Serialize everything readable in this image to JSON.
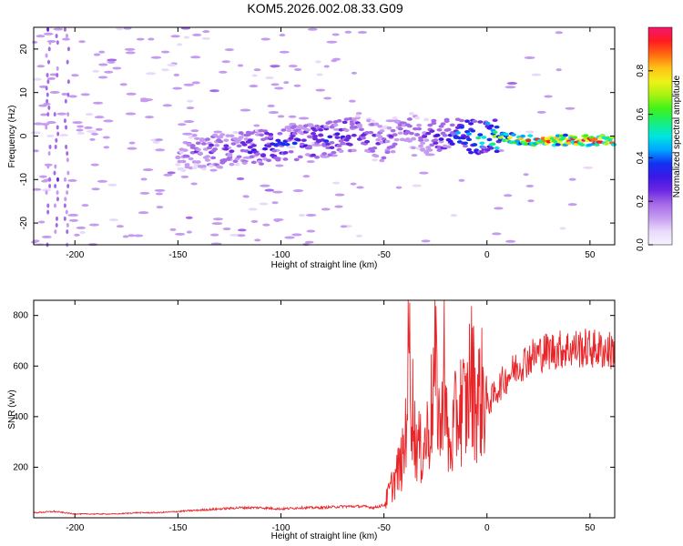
{
  "title": "KOM5.2026.002.08.33.G09",
  "colors": {
    "snr_line": "#e8262a",
    "axis": "#000000"
  },
  "colorbar_gradient": [
    "#f7f2ff",
    "#e9d9fb",
    "#c59bf0",
    "#a56ae8",
    "#6c27e2",
    "#3b18e6",
    "#1033f0",
    "#00a8ff",
    "#00e6e0",
    "#18ee7a",
    "#3df21a",
    "#a6f212",
    "#eef218",
    "#ffc216",
    "#ff6a10",
    "#ff1a22",
    "#f0186e"
  ],
  "chart_data": [
    {
      "type": "heatmap",
      "id": "spectrogram",
      "title": "",
      "xlabel": "Height of straight line (km)",
      "ylabel": "Frequency (Hz)",
      "xlim": [
        -220,
        62
      ],
      "ylim": [
        -25,
        25
      ],
      "xticks": [
        -200,
        -150,
        -100,
        -50,
        0,
        50
      ],
      "xtick_labels": [
        "-200",
        "-150",
        "-100",
        "-50",
        "0",
        "50"
      ],
      "yticks": [
        -20,
        -10,
        0,
        10,
        20
      ],
      "ytick_labels": [
        "-20",
        "-10",
        "0",
        "10",
        "20"
      ],
      "colorbar": {
        "label": "Normalized spectral amplitude",
        "range": [
          0,
          1
        ],
        "ticks": [
          0.0,
          0.2,
          0.4,
          0.6,
          0.8
        ],
        "tick_labels": [
          "0.0",
          "0.2",
          "0.4",
          "0.6",
          "0.8"
        ]
      },
      "ridge": {
        "description_points_x": [
          -150,
          -120,
          -100,
          -80,
          -60,
          -50,
          -40,
          -30,
          -20,
          -10,
          0,
          20,
          40,
          62
        ],
        "center_freq": [
          -4,
          -3,
          -2,
          -1,
          1,
          -2,
          2,
          0,
          0,
          0,
          0,
          -1,
          -1,
          -1
        ],
        "amplitude": [
          0.15,
          0.25,
          0.3,
          0.3,
          0.25,
          0.2,
          0.2,
          0.2,
          0.3,
          0.4,
          0.5,
          0.8,
          0.9,
          0.9
        ]
      }
    },
    {
      "type": "line",
      "id": "snr",
      "title": "",
      "xlabel": "Height of straight line (km)",
      "ylabel": "SNR (v/v)",
      "xlim": [
        -220,
        62
      ],
      "ylim": [
        0,
        860
      ],
      "xticks": [
        -200,
        -150,
        -100,
        -50,
        0,
        50
      ],
      "xtick_labels": [
        "-200",
        "-150",
        "-100",
        "-50",
        "0",
        "50"
      ],
      "yticks": [
        200,
        400,
        600,
        800
      ],
      "ytick_labels": [
        "200",
        "400",
        "600",
        "800"
      ],
      "series": [
        {
          "name": "SNR",
          "x": [
            -220,
            -210,
            -200,
            -190,
            -180,
            -170,
            -160,
            -150,
            -140,
            -130,
            -120,
            -110,
            -100,
            -90,
            -80,
            -70,
            -60,
            -55,
            -50,
            -45,
            -40,
            -38,
            -35,
            -32,
            -30,
            -28,
            -25,
            -22,
            -21,
            -20,
            -18,
            -15,
            -12,
            -10,
            -8,
            -5,
            -2,
            0,
            3,
            6,
            10,
            15,
            20,
            25,
            30,
            40,
            50,
            55,
            62
          ],
          "y": [
            20,
            25,
            15,
            15,
            15,
            20,
            20,
            25,
            30,
            35,
            40,
            40,
            35,
            40,
            40,
            45,
            45,
            40,
            50,
            150,
            250,
            680,
            320,
            260,
            300,
            360,
            580,
            300,
            860,
            380,
            250,
            400,
            450,
            420,
            580,
            460,
            500,
            440,
            480,
            520,
            560,
            600,
            630,
            650,
            660,
            670,
            670,
            665,
            660
          ]
        }
      ]
    }
  ]
}
